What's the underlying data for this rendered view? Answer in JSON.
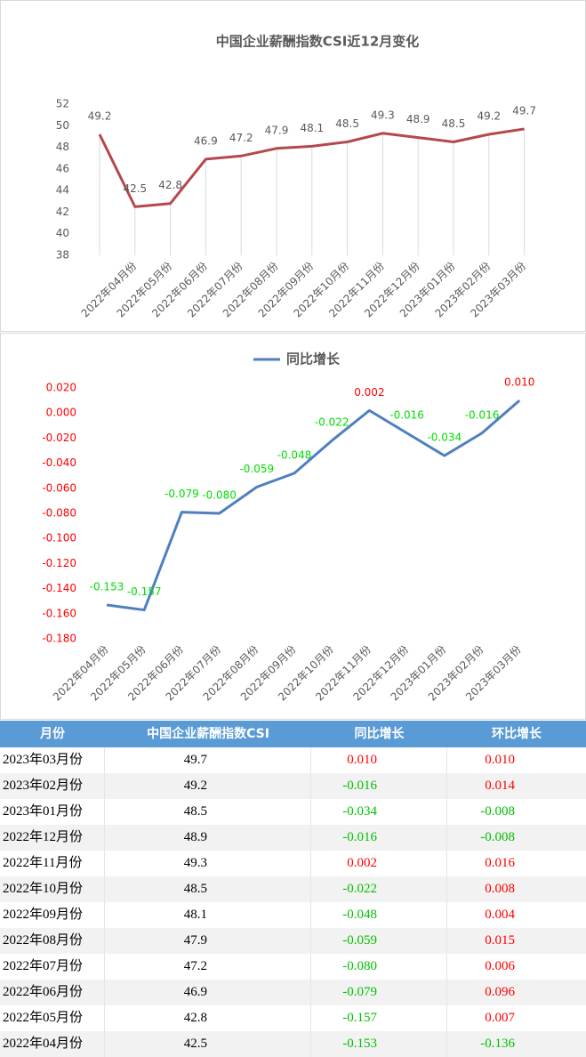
{
  "chart_data": [
    {
      "type": "line",
      "title": "中国企业薪酬指数CSI近12月变化",
      "categories": [
        null,
        "2022年04月份",
        "2022年05月份",
        "2022年06月份",
        "2022年07月份",
        "2022年08月份",
        "2022年09月份",
        "2022年10月份",
        "2022年11月份",
        "2022年12月份",
        "2023年01月份",
        "2023年02月份",
        "2023年03月份"
      ],
      "values": [
        49.2,
        42.5,
        42.8,
        46.9,
        47.2,
        47.9,
        48.1,
        48.5,
        49.3,
        48.9,
        48.5,
        49.2,
        49.7
      ],
      "color": "#b5484c",
      "ylim": [
        38,
        52
      ],
      "yticks": [
        38,
        40,
        42,
        44,
        46,
        48,
        50,
        52
      ]
    },
    {
      "type": "line",
      "legend": "top",
      "categories": [
        "2022年04月份",
        "2022年05月份",
        "2022年06月份",
        "2022年07月份",
        "2022年08月份",
        "2022年09月份",
        "2022年10月份",
        "2022年11月份",
        "2022年12月份",
        "2023年01月份",
        "2023年02月份",
        "2023年03月份"
      ],
      "series": [
        {
          "name": "同比增长",
          "color": "#4f7fbf",
          "values": [
            -0.153,
            -0.157,
            -0.079,
            -0.08,
            -0.059,
            -0.048,
            -0.022,
            0.002,
            -0.016,
            -0.034,
            -0.016,
            0.01
          ],
          "value_labels": [
            "-0.153",
            "-0.157",
            "-0.079",
            "-0.080",
            "-0.059",
            "-0.048",
            "-0.022",
            "0.002",
            "-0.016",
            "-0.034",
            "-0.016",
            "0.010"
          ]
        }
      ],
      "ylim": [
        -0.18,
        0.02
      ],
      "yticks": [
        {
          "value": 0.02,
          "label": "0.020"
        },
        {
          "value": 0,
          "label": "0.000"
        },
        {
          "value": -0.02,
          "label": "-0.020"
        },
        {
          "value": -0.04,
          "label": "-0.040"
        },
        {
          "value": -0.06,
          "label": "-0.060"
        },
        {
          "value": -0.08,
          "label": "-0.080"
        },
        {
          "value": -0.1,
          "label": "-0.100"
        },
        {
          "value": -0.12,
          "label": "-0.120"
        },
        {
          "value": -0.14,
          "label": "-0.140"
        },
        {
          "value": -0.16,
          "label": "-0.160"
        },
        {
          "value": -0.18,
          "label": "-0.180"
        }
      ]
    }
  ],
  "table": {
    "header": [
      "月份",
      "中国企业薪酬指数CSI",
      "同比增长",
      "环比增长"
    ],
    "rows": [
      [
        "2023年03月份",
        "49.7",
        "0.010",
        "0.010"
      ],
      [
        "2023年02月份",
        "49.2",
        "-0.016",
        "0.014"
      ],
      [
        "2023年01月份",
        "48.5",
        "-0.034",
        "-0.008"
      ],
      [
        "2022年12月份",
        "48.9",
        "-0.016",
        "-0.008"
      ],
      [
        "2022年11月份",
        "49.3",
        "0.002",
        "0.016"
      ],
      [
        "2022年10月份",
        "48.5",
        "-0.022",
        "0.008"
      ],
      [
        "2022年09月份",
        "48.1",
        "-0.048",
        "0.004"
      ],
      [
        "2022年08月份",
        "47.9",
        "-0.059",
        "0.015"
      ],
      [
        "2022年07月份",
        "47.2",
        "-0.080",
        "0.006"
      ],
      [
        "2022年06月份",
        "46.9",
        "-0.079",
        "0.096"
      ],
      [
        "2022年05月份",
        "42.8",
        "-0.157",
        "0.007"
      ],
      [
        "2022年04月份",
        "42.5",
        "-0.153",
        "-0.136"
      ]
    ]
  }
}
